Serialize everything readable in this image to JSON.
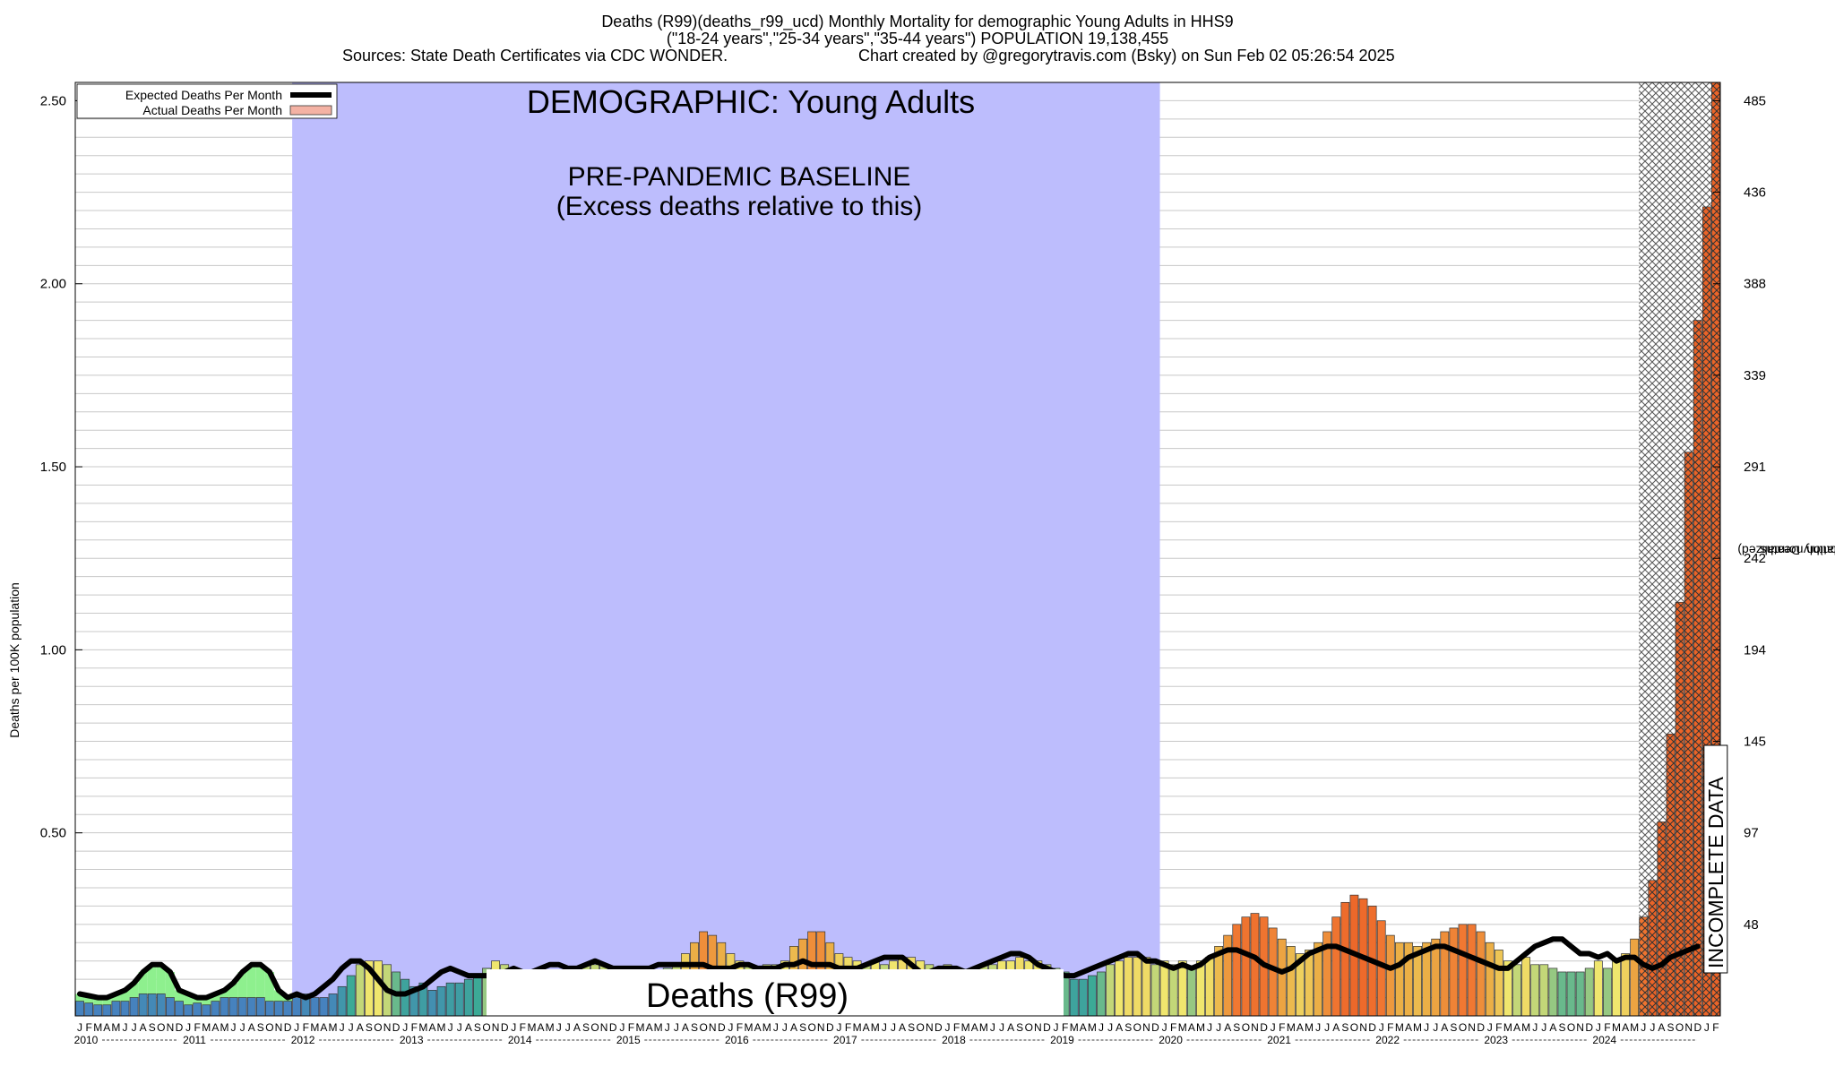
{
  "header": {
    "title_line1": "Deaths (R99)(deaths_r99_ucd) Monthly Mortality for demographic Young Adults in HHS9",
    "title_line2": "(\"18-24 years\",\"25-34 years\",\"35-44 years\") POPULATION 19,138,455",
    "sources": "Sources: State Death Certificates via CDC WONDER.",
    "credit": "Chart created by @gregorytravis.com (Bsky) on Sun Feb 02 05:26:54 2025"
  },
  "chart_data": {
    "type": "bar",
    "title": "Deaths (R99)(deaths_r99_ucd) Monthly Mortality for demographic Young Adults in HHS9",
    "ylabel": "Deaths per 100K population",
    "ylabel_right_line1": "Total Monthly Deaths",
    "ylabel_right_line2": "(2023 population normalized)",
    "ylim": [
      0,
      2.55
    ],
    "y_ticks": [
      "0.50",
      "1.00",
      "1.50",
      "2.00",
      "2.50"
    ],
    "y_tick_values": [
      0.5,
      1.0,
      1.5,
      2.0,
      2.5
    ],
    "y_right_ticks": [
      "48",
      "97",
      "145",
      "194",
      "242",
      "291",
      "339",
      "388",
      "436",
      "485"
    ],
    "y_right_values": [
      0.25,
      0.5,
      0.75,
      1.0,
      1.25,
      1.5,
      1.75,
      2.0,
      2.25,
      2.5
    ],
    "years": [
      "2010",
      "2011",
      "2012",
      "2013",
      "2014",
      "2015",
      "2016",
      "2017",
      "2018",
      "2019",
      "2020",
      "2021",
      "2022",
      "2023",
      "2024"
    ],
    "month_letters": [
      "J",
      "F",
      "M",
      "A",
      "M",
      "J",
      "J",
      "A",
      "S",
      "O",
      "N",
      "D"
    ],
    "legend": [
      "Expected Deaths Per Month",
      "Actual Deaths Per Month"
    ],
    "annotations": {
      "demographic": "DEMOGRAPHIC: Young Adults",
      "baseline_line1": "PRE-PANDEMIC BASELINE",
      "baseline_line2": "(Excess deaths relative to this)",
      "cause_label": "Deaths (R99)",
      "incomplete": "INCOMPLETE DATA"
    },
    "baseline_span": [
      "2012-01",
      "2019-12"
    ],
    "incomplete_from": "2024-06",
    "series": [
      {
        "name": "Actual Deaths Per Month",
        "values": [
          0.04,
          0.035,
          0.03,
          0.03,
          0.04,
          0.04,
          0.05,
          0.06,
          0.06,
          0.06,
          0.05,
          0.04,
          0.03,
          0.035,
          0.03,
          0.04,
          0.05,
          0.05,
          0.05,
          0.05,
          0.05,
          0.04,
          0.04,
          0.04,
          0.05,
          0.06,
          0.05,
          0.05,
          0.06,
          0.08,
          0.11,
          0.14,
          0.15,
          0.15,
          0.14,
          0.12,
          0.1,
          0.08,
          0.09,
          0.07,
          0.08,
          0.09,
          0.09,
          0.1,
          0.11,
          0.13,
          0.15,
          0.14,
          0.13,
          0.12,
          0.11,
          0.1,
          0.12,
          0.11,
          0.12,
          0.13,
          0.14,
          0.14,
          0.14,
          0.13,
          0.12,
          0.11,
          0.11,
          0.11,
          0.12,
          0.13,
          0.14,
          0.17,
          0.2,
          0.23,
          0.22,
          0.2,
          0.17,
          0.15,
          0.14,
          0.13,
          0.14,
          0.14,
          0.15,
          0.19,
          0.21,
          0.23,
          0.23,
          0.2,
          0.17,
          0.16,
          0.15,
          0.14,
          0.15,
          0.14,
          0.15,
          0.16,
          0.16,
          0.15,
          0.14,
          0.13,
          0.14,
          0.13,
          0.12,
          0.13,
          0.14,
          0.14,
          0.15,
          0.15,
          0.16,
          0.15,
          0.15,
          0.14,
          0.13,
          0.12,
          0.1,
          0.1,
          0.11,
          0.12,
          0.14,
          0.15,
          0.16,
          0.16,
          0.16,
          0.14,
          0.15,
          0.14,
          0.15,
          0.13,
          0.15,
          0.16,
          0.19,
          0.22,
          0.25,
          0.27,
          0.28,
          0.27,
          0.24,
          0.21,
          0.19,
          0.17,
          0.18,
          0.2,
          0.23,
          0.27,
          0.31,
          0.33,
          0.32,
          0.3,
          0.26,
          0.22,
          0.2,
          0.2,
          0.19,
          0.2,
          0.21,
          0.23,
          0.24,
          0.25,
          0.25,
          0.23,
          0.2,
          0.18,
          0.15,
          0.14,
          0.16,
          0.14,
          0.14,
          0.13,
          0.12,
          0.12,
          0.12,
          0.13,
          0.15,
          0.13,
          0.15,
          0.17,
          0.21,
          0.27,
          0.37,
          0.53,
          0.77,
          1.13,
          1.54,
          1.9,
          2.21,
          2.55
        ]
      },
      {
        "name": "Expected Deaths Per Month",
        "values": [
          0.06,
          0.055,
          0.05,
          0.05,
          0.06,
          0.07,
          0.09,
          0.12,
          0.14,
          0.14,
          0.12,
          0.07,
          0.06,
          0.05,
          0.05,
          0.06,
          0.07,
          0.09,
          0.12,
          0.14,
          0.14,
          0.12,
          0.07,
          0.05,
          0.06,
          0.05,
          0.06,
          0.08,
          0.1,
          0.13,
          0.15,
          0.15,
          0.13,
          0.1,
          0.07,
          0.06,
          0.06,
          0.07,
          0.08,
          0.1,
          0.12,
          0.13,
          0.12,
          0.11,
          0.11,
          0.11,
          0.12,
          0.12,
          0.13,
          0.12,
          0.12,
          0.13,
          0.14,
          0.14,
          0.13,
          0.13,
          0.14,
          0.15,
          0.14,
          0.13,
          0.13,
          0.13,
          0.13,
          0.13,
          0.14,
          0.14,
          0.14,
          0.14,
          0.14,
          0.14,
          0.13,
          0.13,
          0.13,
          0.14,
          0.14,
          0.13,
          0.13,
          0.13,
          0.14,
          0.14,
          0.15,
          0.14,
          0.14,
          0.14,
          0.13,
          0.13,
          0.13,
          0.14,
          0.15,
          0.16,
          0.16,
          0.16,
          0.14,
          0.12,
          0.12,
          0.13,
          0.13,
          0.13,
          0.12,
          0.13,
          0.14,
          0.15,
          0.16,
          0.17,
          0.17,
          0.16,
          0.14,
          0.13,
          0.12,
          0.11,
          0.11,
          0.12,
          0.13,
          0.14,
          0.15,
          0.16,
          0.17,
          0.17,
          0.15,
          0.15,
          0.14,
          0.13,
          0.14,
          0.13,
          0.14,
          0.16,
          0.17,
          0.18,
          0.18,
          0.17,
          0.16,
          0.14,
          0.13,
          0.12,
          0.13,
          0.15,
          0.17,
          0.18,
          0.19,
          0.19,
          0.18,
          0.17,
          0.16,
          0.15,
          0.14,
          0.13,
          0.14,
          0.16,
          0.17,
          0.18,
          0.19,
          0.19,
          0.18,
          0.17,
          0.16,
          0.15,
          0.14,
          0.13,
          0.13,
          0.15,
          0.17,
          0.19,
          0.2,
          0.21,
          0.21,
          0.19,
          0.17,
          0.17,
          0.16,
          0.17,
          0.15,
          0.16,
          0.16,
          0.14,
          0.13,
          0.14,
          0.16,
          0.17,
          0.18,
          0.19
        ]
      }
    ]
  }
}
